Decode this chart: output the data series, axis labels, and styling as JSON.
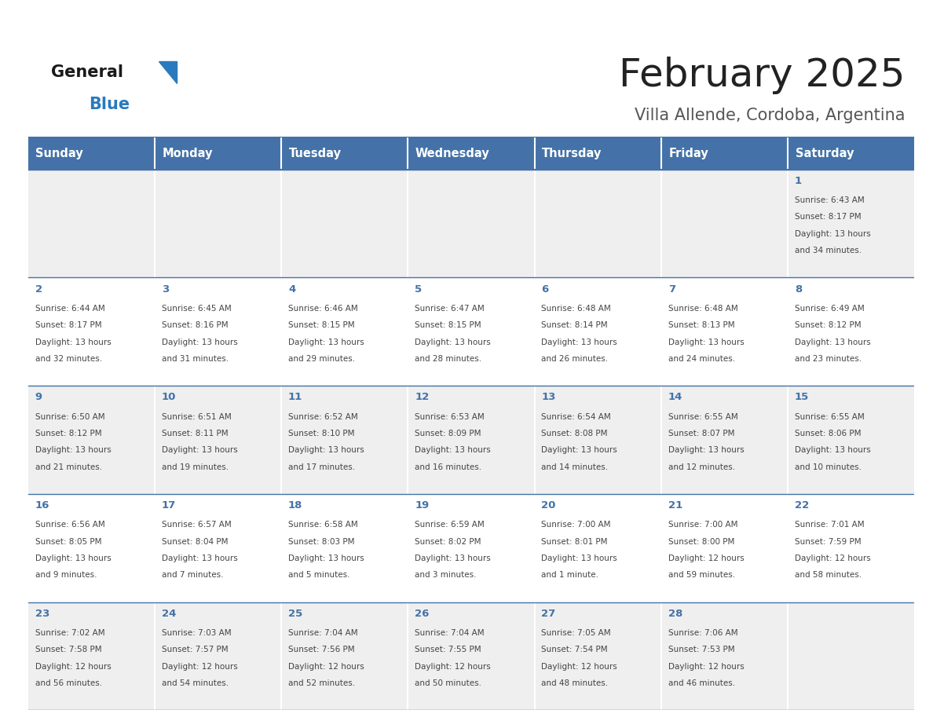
{
  "title": "February 2025",
  "subtitle": "Villa Allende, Cordoba, Argentina",
  "days_of_week": [
    "Sunday",
    "Monday",
    "Tuesday",
    "Wednesday",
    "Thursday",
    "Friday",
    "Saturday"
  ],
  "header_bg": "#4472a8",
  "header_text": "#ffffff",
  "row_bg_even": "#efefef",
  "row_bg_odd": "#ffffff",
  "border_color": "#4472a8",
  "day_number_color": "#4472a8",
  "text_color": "#444444",
  "title_color": "#222222",
  "subtitle_color": "#555555",
  "logo_general_color": "#1a1a1a",
  "logo_blue_color": "#2a7abf",
  "calendar_data": [
    [
      null,
      null,
      null,
      null,
      null,
      null,
      {
        "day": 1,
        "sunrise": "6:43 AM",
        "sunset": "8:17 PM",
        "daylight_line1": "13 hours",
        "daylight_line2": "and 34 minutes."
      }
    ],
    [
      {
        "day": 2,
        "sunrise": "6:44 AM",
        "sunset": "8:17 PM",
        "daylight_line1": "13 hours",
        "daylight_line2": "and 32 minutes."
      },
      {
        "day": 3,
        "sunrise": "6:45 AM",
        "sunset": "8:16 PM",
        "daylight_line1": "13 hours",
        "daylight_line2": "and 31 minutes."
      },
      {
        "day": 4,
        "sunrise": "6:46 AM",
        "sunset": "8:15 PM",
        "daylight_line1": "13 hours",
        "daylight_line2": "and 29 minutes."
      },
      {
        "day": 5,
        "sunrise": "6:47 AM",
        "sunset": "8:15 PM",
        "daylight_line1": "13 hours",
        "daylight_line2": "and 28 minutes."
      },
      {
        "day": 6,
        "sunrise": "6:48 AM",
        "sunset": "8:14 PM",
        "daylight_line1": "13 hours",
        "daylight_line2": "and 26 minutes."
      },
      {
        "day": 7,
        "sunrise": "6:48 AM",
        "sunset": "8:13 PM",
        "daylight_line1": "13 hours",
        "daylight_line2": "and 24 minutes."
      },
      {
        "day": 8,
        "sunrise": "6:49 AM",
        "sunset": "8:12 PM",
        "daylight_line1": "13 hours",
        "daylight_line2": "and 23 minutes."
      }
    ],
    [
      {
        "day": 9,
        "sunrise": "6:50 AM",
        "sunset": "8:12 PM",
        "daylight_line1": "13 hours",
        "daylight_line2": "and 21 minutes."
      },
      {
        "day": 10,
        "sunrise": "6:51 AM",
        "sunset": "8:11 PM",
        "daylight_line1": "13 hours",
        "daylight_line2": "and 19 minutes."
      },
      {
        "day": 11,
        "sunrise": "6:52 AM",
        "sunset": "8:10 PM",
        "daylight_line1": "13 hours",
        "daylight_line2": "and 17 minutes."
      },
      {
        "day": 12,
        "sunrise": "6:53 AM",
        "sunset": "8:09 PM",
        "daylight_line1": "13 hours",
        "daylight_line2": "and 16 minutes."
      },
      {
        "day": 13,
        "sunrise": "6:54 AM",
        "sunset": "8:08 PM",
        "daylight_line1": "13 hours",
        "daylight_line2": "and 14 minutes."
      },
      {
        "day": 14,
        "sunrise": "6:55 AM",
        "sunset": "8:07 PM",
        "daylight_line1": "13 hours",
        "daylight_line2": "and 12 minutes."
      },
      {
        "day": 15,
        "sunrise": "6:55 AM",
        "sunset": "8:06 PM",
        "daylight_line1": "13 hours",
        "daylight_line2": "and 10 minutes."
      }
    ],
    [
      {
        "day": 16,
        "sunrise": "6:56 AM",
        "sunset": "8:05 PM",
        "daylight_line1": "13 hours",
        "daylight_line2": "and 9 minutes."
      },
      {
        "day": 17,
        "sunrise": "6:57 AM",
        "sunset": "8:04 PM",
        "daylight_line1": "13 hours",
        "daylight_line2": "and 7 minutes."
      },
      {
        "day": 18,
        "sunrise": "6:58 AM",
        "sunset": "8:03 PM",
        "daylight_line1": "13 hours",
        "daylight_line2": "and 5 minutes."
      },
      {
        "day": 19,
        "sunrise": "6:59 AM",
        "sunset": "8:02 PM",
        "daylight_line1": "13 hours",
        "daylight_line2": "and 3 minutes."
      },
      {
        "day": 20,
        "sunrise": "7:00 AM",
        "sunset": "8:01 PM",
        "daylight_line1": "13 hours",
        "daylight_line2": "and 1 minute."
      },
      {
        "day": 21,
        "sunrise": "7:00 AM",
        "sunset": "8:00 PM",
        "daylight_line1": "12 hours",
        "daylight_line2": "and 59 minutes."
      },
      {
        "day": 22,
        "sunrise": "7:01 AM",
        "sunset": "7:59 PM",
        "daylight_line1": "12 hours",
        "daylight_line2": "and 58 minutes."
      }
    ],
    [
      {
        "day": 23,
        "sunrise": "7:02 AM",
        "sunset": "7:58 PM",
        "daylight_line1": "12 hours",
        "daylight_line2": "and 56 minutes."
      },
      {
        "day": 24,
        "sunrise": "7:03 AM",
        "sunset": "7:57 PM",
        "daylight_line1": "12 hours",
        "daylight_line2": "and 54 minutes."
      },
      {
        "day": 25,
        "sunrise": "7:04 AM",
        "sunset": "7:56 PM",
        "daylight_line1": "12 hours",
        "daylight_line2": "and 52 minutes."
      },
      {
        "day": 26,
        "sunrise": "7:04 AM",
        "sunset": "7:55 PM",
        "daylight_line1": "12 hours",
        "daylight_line2": "and 50 minutes."
      },
      {
        "day": 27,
        "sunrise": "7:05 AM",
        "sunset": "7:54 PM",
        "daylight_line1": "12 hours",
        "daylight_line2": "and 48 minutes."
      },
      {
        "day": 28,
        "sunrise": "7:06 AM",
        "sunset": "7:53 PM",
        "daylight_line1": "12 hours",
        "daylight_line2": "and 46 minutes."
      },
      null
    ]
  ],
  "fig_width": 11.88,
  "fig_height": 9.18
}
